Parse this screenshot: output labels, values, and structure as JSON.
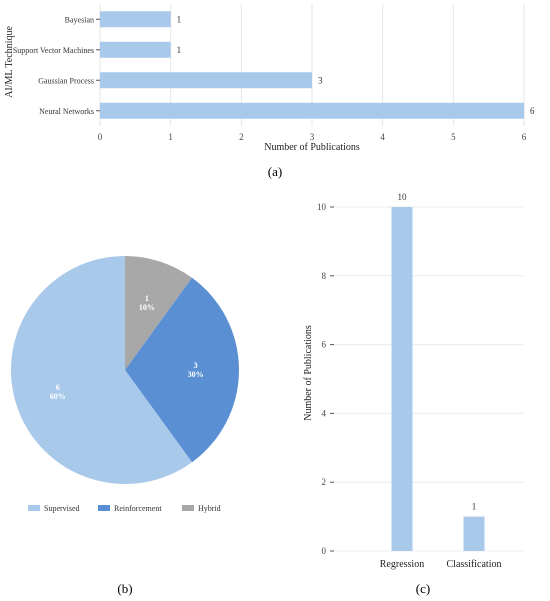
{
  "chart_data": [
    {
      "type": "bar",
      "orientation": "horizontal",
      "panel_label": "(a)",
      "categories": [
        "Bayesian",
        "Support Vector Machines",
        "Gaussian Process",
        "Neural Networks"
      ],
      "values": [
        1,
        1,
        3,
        6
      ],
      "xlabel": "Number of Publications",
      "ylabel": "AI/ML Technique",
      "xlim": [
        0,
        6
      ],
      "xticks": [
        "0",
        "1",
        "2",
        "3",
        "4",
        "5",
        "6"
      ],
      "grid": true,
      "color": "#a9c9ea"
    },
    {
      "type": "pie",
      "panel_label": "(b)",
      "slices": [
        {
          "label": "Supervised",
          "value": 6,
          "count_text": "6",
          "pct_text": "60%",
          "color": "#a9c9ea"
        },
        {
          "label": "Reinforcement",
          "value": 3,
          "count_text": "3",
          "pct_text": "30%",
          "color": "#5b8fd4"
        },
        {
          "label": "Hybrid",
          "value": 1,
          "count_text": "1",
          "pct_text": "10%",
          "color": "#a8a8a8"
        }
      ],
      "legend_position": "bottom"
    },
    {
      "type": "bar",
      "orientation": "vertical",
      "panel_label": "(c)",
      "categories": [
        "Regression",
        "Classification"
      ],
      "values": [
        10,
        1
      ],
      "ylabel": "Number of Publications",
      "ylim": [
        0,
        10
      ],
      "yticks": [
        "0",
        "2",
        "4",
        "6",
        "8",
        "10"
      ],
      "grid": true,
      "color": "#a9c9ea"
    }
  ]
}
